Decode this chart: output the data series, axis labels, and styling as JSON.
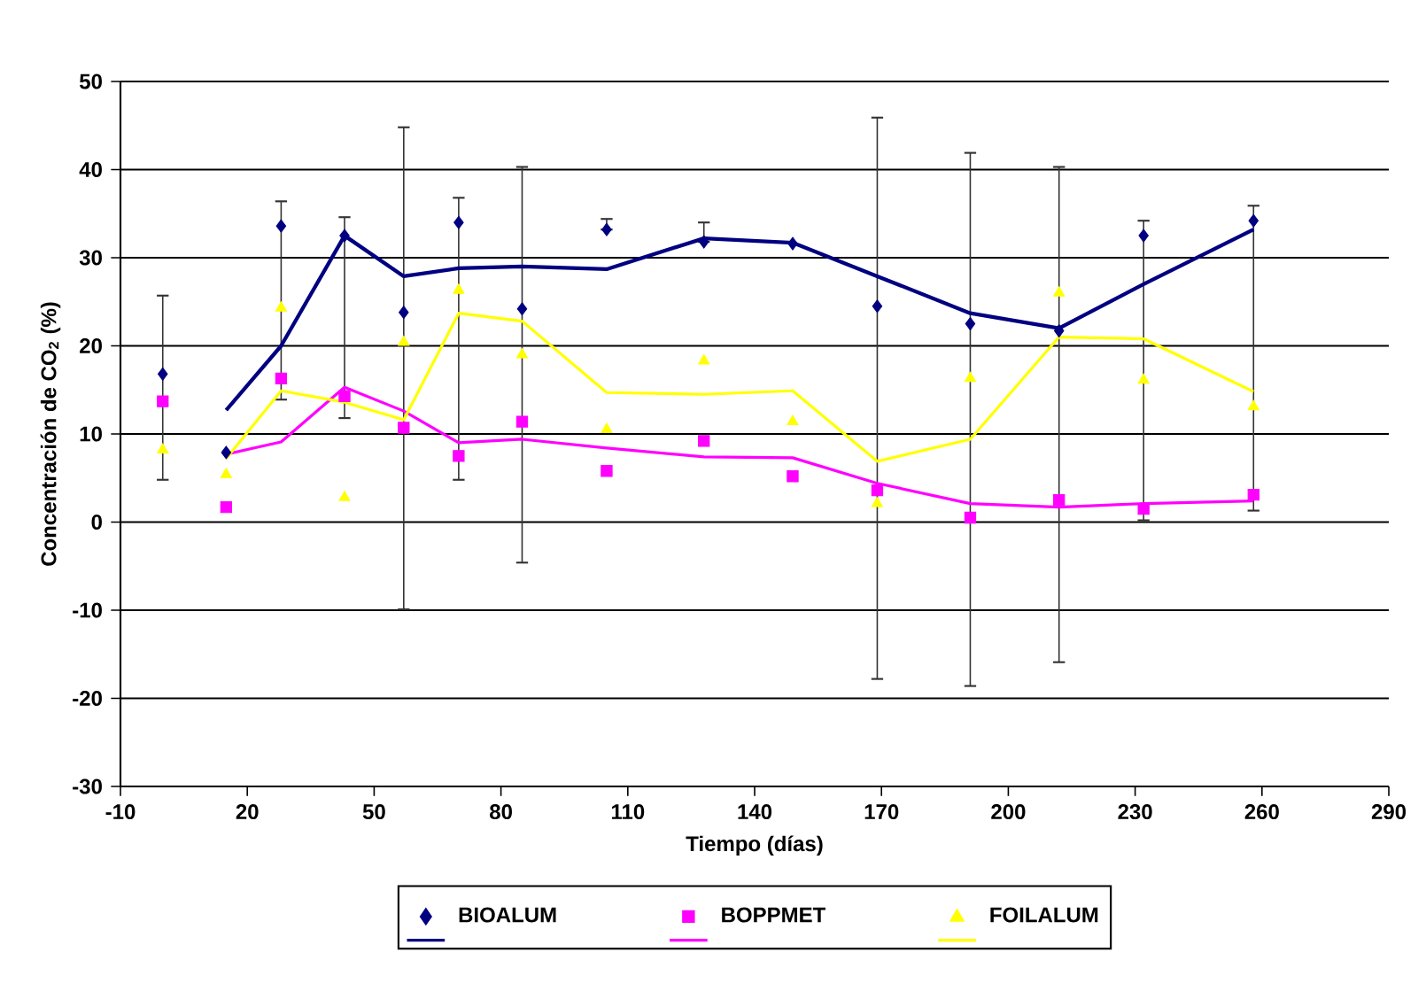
{
  "chart_data": {
    "type": "scatter",
    "xlabel": "Tiempo (días)",
    "ylabel": "Concentración de CO$_{2}$ (%)",
    "xlim": [
      -10,
      290
    ],
    "xticks": [
      -10,
      20,
      50,
      80,
      110,
      140,
      170,
      200,
      230,
      260,
      290
    ],
    "ylim": [
      -30,
      50
    ],
    "yticks": [
      -30,
      -20,
      -10,
      0,
      10,
      20,
      30,
      40,
      50
    ],
    "grid": "y",
    "legend": "bottom",
    "series": [
      {
        "name": "BIOALUM",
        "marker": "diamond",
        "color": "#000080",
        "x": [
          0,
          15,
          28,
          43,
          57,
          70,
          85,
          105,
          128,
          149,
          169,
          191,
          212,
          232,
          258
        ],
        "values": [
          16.8,
          7.9,
          33.6,
          32.5,
          23.8,
          34.0,
          24.2,
          33.2,
          31.8,
          31.6,
          24.5,
          22.5,
          21.7,
          32.5,
          34.2
        ],
        "errors": [
          [
            4.8,
            25.7
          ],
          null,
          [
            13.9,
            36.4
          ],
          [
            11.8,
            34.6
          ],
          [
            -9.9,
            44.8
          ],
          [
            4.8,
            36.8
          ],
          [
            -4.6,
            40.3
          ],
          [
            33.2,
            34.4
          ],
          [
            31.8,
            34.0
          ],
          null,
          [
            -17.8,
            45.9
          ],
          [
            -18.6,
            41.9
          ],
          [
            -15.9,
            40.3
          ],
          [
            0.2,
            34.2
          ],
          [
            1.3,
            35.9
          ]
        ]
      },
      {
        "name": "BOPPMET",
        "marker": "square",
        "color": "#ff00ff",
        "x": [
          0,
          15,
          28,
          43,
          57,
          70,
          85,
          105,
          128,
          149,
          169,
          191,
          212,
          232,
          258
        ],
        "values": [
          13.7,
          1.7,
          16.3,
          14.3,
          10.7,
          7.5,
          11.4,
          5.8,
          9.2,
          5.2,
          3.6,
          0.5,
          2.5,
          1.5,
          3.1
        ]
      },
      {
        "name": "FOILALUM",
        "marker": "triangle",
        "color": "#ffff00",
        "x": [
          0,
          15,
          28,
          43,
          57,
          70,
          85,
          105,
          128,
          149,
          169,
          191,
          212,
          232,
          258
        ],
        "values": [
          8.2,
          5.4,
          24.3,
          2.8,
          20.4,
          26.3,
          19.0,
          10.5,
          18.3,
          11.4,
          2.1,
          16.3,
          26.0,
          16.1,
          13.1
        ]
      },
      {
        "type": "line",
        "color": "#000080",
        "x": [
          15,
          28,
          43,
          57,
          70,
          85,
          105,
          128,
          149,
          169,
          191,
          212,
          232,
          258
        ],
        "values": [
          12.7,
          20.0,
          32.5,
          27.9,
          28.8,
          29.0,
          28.7,
          32.2,
          31.7,
          27.9,
          23.7,
          22.0,
          27.0,
          33.2
        ]
      },
      {
        "type": "line",
        "color": "#ff00ff",
        "x": [
          15,
          28,
          43,
          57,
          70,
          85,
          105,
          128,
          149,
          169,
          191,
          212,
          232,
          258
        ],
        "values": [
          7.7,
          9.1,
          15.3,
          12.6,
          9.0,
          9.4,
          8.4,
          7.4,
          7.3,
          4.4,
          2.1,
          1.7,
          2.1,
          2.4
        ]
      },
      {
        "type": "line",
        "color": "#ffff00",
        "x": [
          15,
          28,
          43,
          57,
          70,
          85,
          105,
          128,
          149,
          169,
          191,
          212,
          232,
          258
        ],
        "values": [
          7.2,
          14.9,
          13.6,
          11.6,
          23.7,
          22.8,
          14.7,
          14.5,
          14.9,
          6.9,
          9.4,
          21.0,
          20.8,
          14.8
        ]
      }
    ]
  }
}
